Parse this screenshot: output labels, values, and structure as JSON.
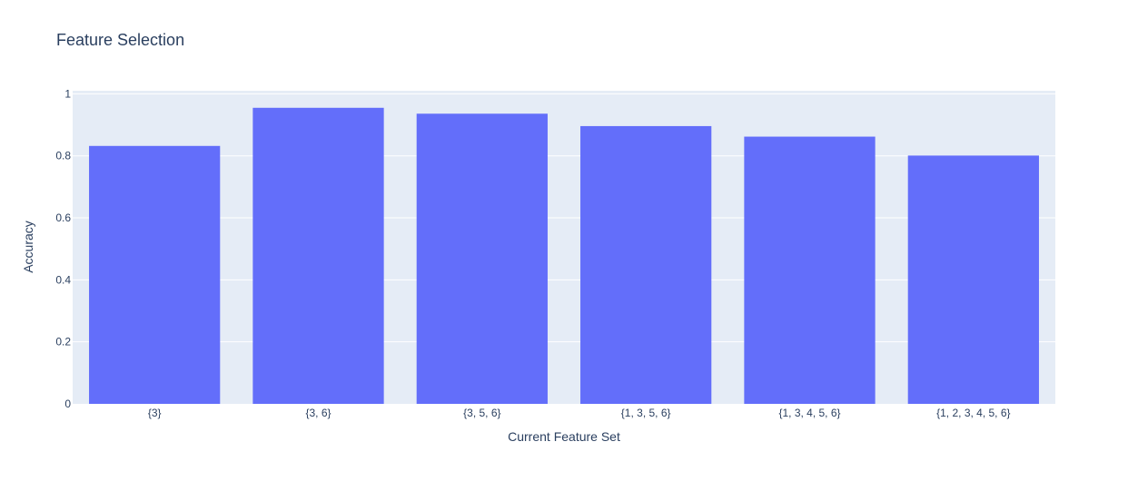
{
  "colors": {
    "plot_background": "#e5ecf6",
    "gridline": "#ffffff",
    "bar": "#636efa",
    "text": "#2a3f5f"
  },
  "chart_data": {
    "type": "bar",
    "title": "Feature Selection",
    "xlabel": "Current Feature Set",
    "ylabel": "Accuracy",
    "categories": [
      "{3}",
      "{3, 6}",
      "{3, 5, 6}",
      "{1, 3, 5, 6}",
      "{1, 3, 4, 5, 6}",
      "{1, 2, 3, 4, 5, 6}"
    ],
    "values": [
      0.832,
      0.955,
      0.936,
      0.896,
      0.862,
      0.801
    ],
    "ylim": [
      0,
      1.01
    ],
    "yticks": [
      0,
      0.2,
      0.4,
      0.6,
      0.8,
      1
    ],
    "ytick_labels": [
      "0",
      "0.2",
      "0.4",
      "0.6",
      "0.8",
      "1"
    ],
    "grid": true,
    "legend": "none"
  }
}
